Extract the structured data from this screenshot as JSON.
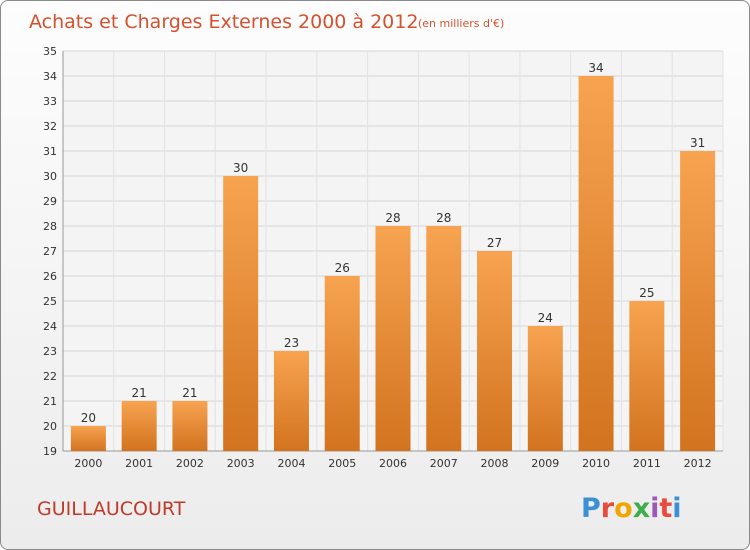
{
  "chart_data": {
    "type": "bar",
    "title": "Achats et Charges Externes 2000 à 2012",
    "subtitle": "(en milliers d'€)",
    "categories": [
      "2000",
      "2001",
      "2002",
      "2003",
      "2004",
      "2005",
      "2006",
      "2007",
      "2008",
      "2009",
      "2010",
      "2011",
      "2012"
    ],
    "values": [
      20,
      21,
      21,
      30,
      23,
      26,
      28,
      28,
      27,
      24,
      34,
      25,
      31
    ],
    "ylim": [
      19,
      35
    ],
    "yticks": [
      19,
      20,
      21,
      22,
      23,
      24,
      25,
      26,
      27,
      28,
      29,
      30,
      31,
      32,
      33,
      34,
      35
    ],
    "grid": true,
    "legend": "none",
    "bar_color_top": "#f7a350",
    "bar_color_bottom": "#d2731f"
  },
  "footer": {
    "location": "GUILLAUCOURT",
    "brand": "Proxiti",
    "brand_colors": [
      "#3a8fd6",
      "#e94b3c",
      "#f0a500",
      "#3fae49",
      "#9b59b6",
      "#e94b3c",
      "#3a8fd6"
    ]
  }
}
